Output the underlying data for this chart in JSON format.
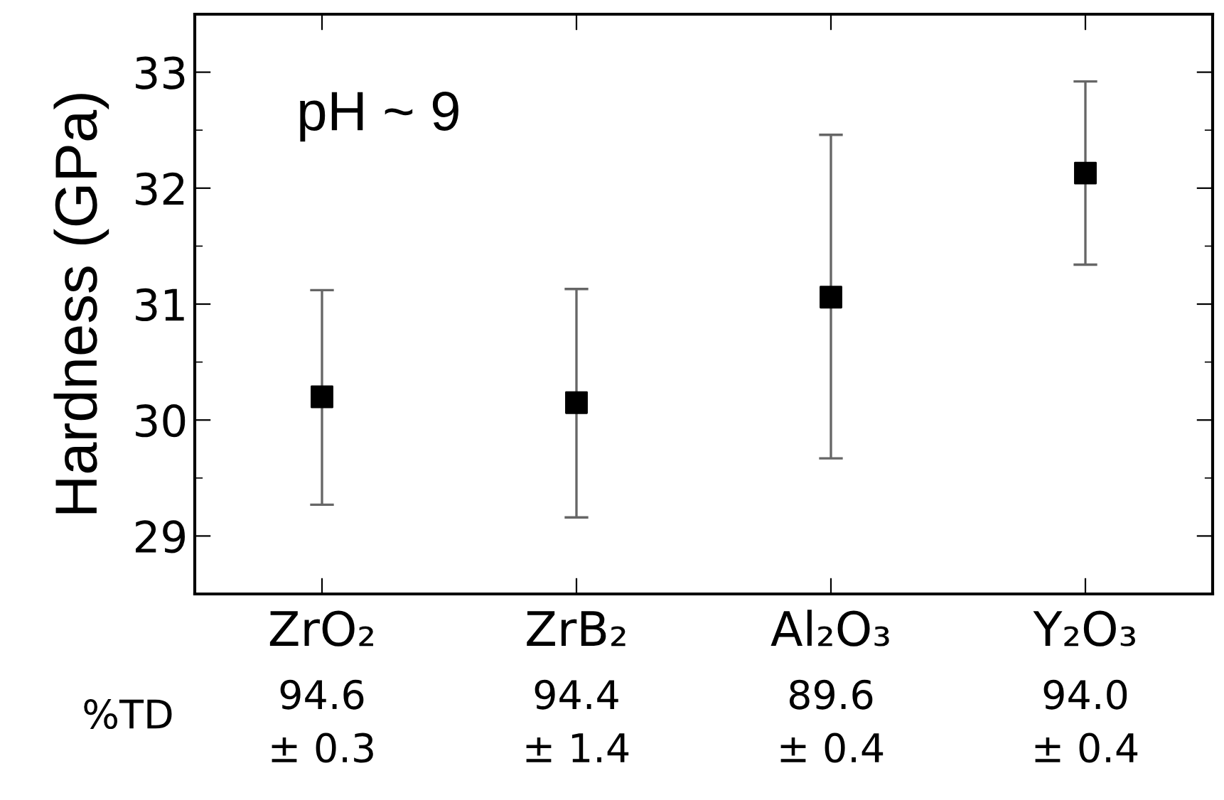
{
  "chart_data": {
    "type": "scatter",
    "ylabel": "Hardness (GPa)",
    "categories": [
      "ZrO₂",
      "ZrB₂",
      "Al₂O₃",
      "Y₂O₃"
    ],
    "series": [
      {
        "color": "#000000",
        "values": [
          30.2,
          30.15,
          31.06,
          32.13
        ],
        "errors": [
          [
            29.27,
            31.12
          ],
          [
            29.16,
            31.13
          ],
          [
            29.67,
            32.46
          ],
          [
            31.34,
            32.92
          ]
        ]
      }
    ],
    "marker": "square",
    "ylim": [
      28.5,
      33.5
    ],
    "yticks": [
      29,
      30,
      31,
      32,
      33
    ],
    "grid": false,
    "legend": false,
    "annotations": [
      "pH ~ 9",
      "%TD",
      "94.6\n± 0.3",
      "94.4\n± 1.4",
      "89.6\n± 0.4",
      "94.0\n± 0.4"
    ]
  }
}
